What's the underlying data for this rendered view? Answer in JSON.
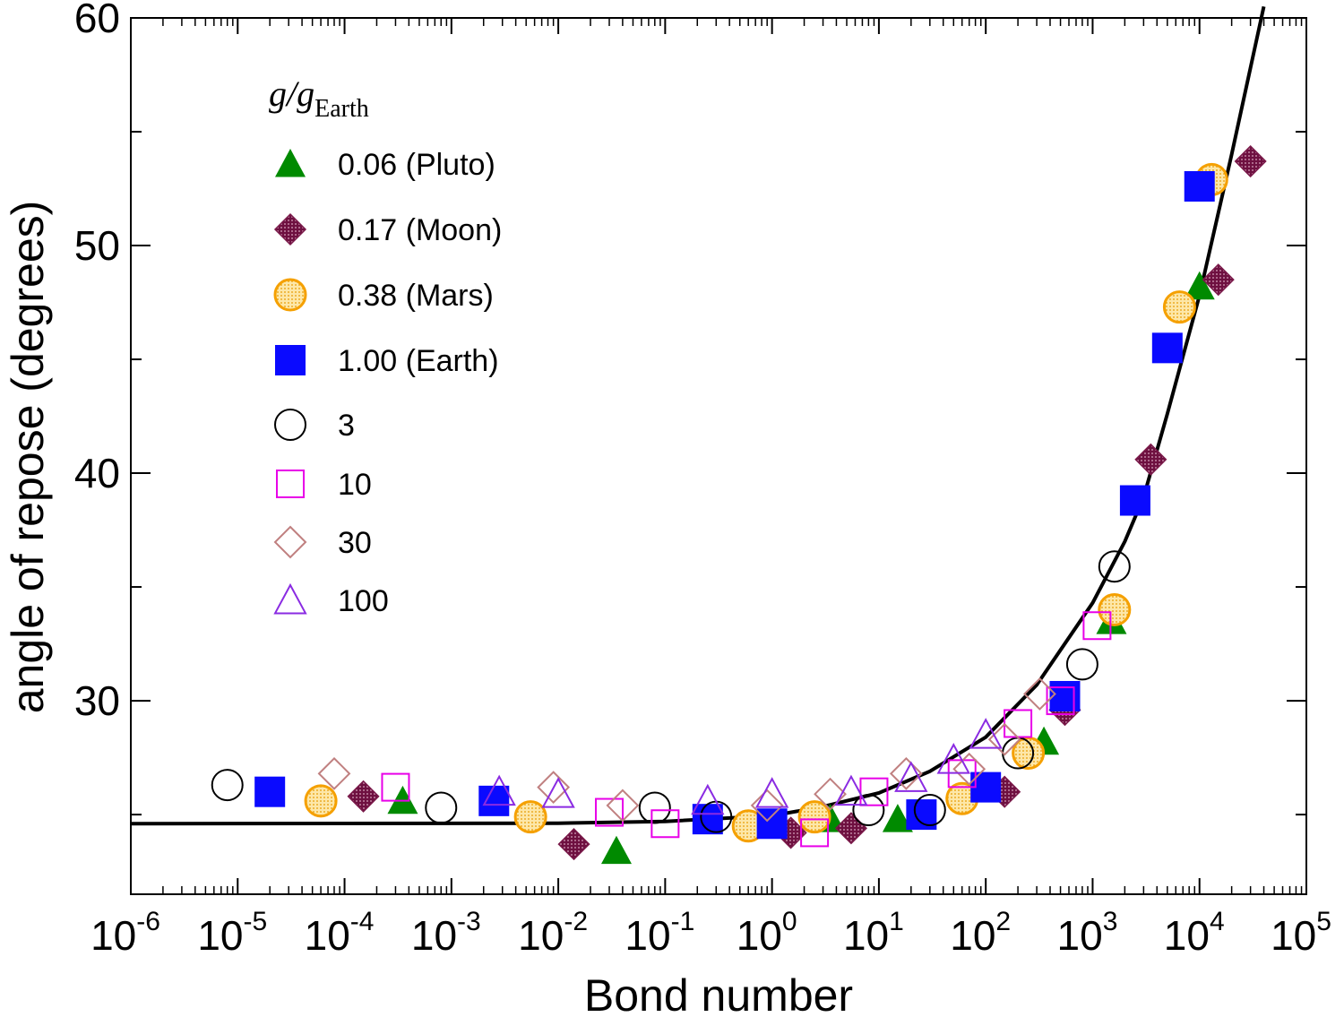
{
  "chart_data": {
    "type": "scatter",
    "xlabel": "Bond number",
    "ylabel": "angle of repose (degrees)",
    "x_scale": "log",
    "xlim": [
      1e-06,
      100000.0
    ],
    "ylim": [
      21.5,
      60
    ],
    "x_ticks": [
      {
        "base": "10",
        "exp": "-6"
      },
      {
        "base": "10",
        "exp": "-5"
      },
      {
        "base": "10",
        "exp": "-4"
      },
      {
        "base": "10",
        "exp": "-3"
      },
      {
        "base": "10",
        "exp": "-2"
      },
      {
        "base": "10",
        "exp": "-1"
      },
      {
        "base": "10",
        "exp": "0"
      },
      {
        "base": "10",
        "exp": "1"
      },
      {
        "base": "10",
        "exp": "2"
      },
      {
        "base": "10",
        "exp": "3"
      },
      {
        "base": "10",
        "exp": "4"
      },
      {
        "base": "10",
        "exp": "5"
      }
    ],
    "y_ticks": [
      "30",
      "40",
      "50",
      "60"
    ],
    "legend": {
      "title": "g/g",
      "title_sub": "Earth",
      "placement": "top-left"
    },
    "series": [
      {
        "name": "0.06 (Pluto)",
        "marker": "filled-triangle",
        "color": "#008a00",
        "points": [
          [
            0.00035,
            25.6
          ],
          [
            0.035,
            23.4
          ],
          [
            3.5,
            24.8
          ],
          [
            15,
            24.8
          ],
          [
            350,
            28.2
          ],
          [
            1500,
            33.5
          ],
          [
            10000,
            48.2
          ]
        ]
      },
      {
        "name": "0.17 (Moon)",
        "marker": "dotted-diamond",
        "color": "#7a1a4a",
        "points": [
          [
            0.00015,
            25.8
          ],
          [
            0.014,
            23.7
          ],
          [
            1.5,
            24.2
          ],
          [
            5.5,
            24.4
          ],
          [
            150,
            26.0
          ],
          [
            550,
            29.6
          ],
          [
            3500,
            40.6
          ],
          [
            15000,
            48.5
          ],
          [
            30000,
            53.7
          ]
        ]
      },
      {
        "name": "0.38 (Mars)",
        "marker": "dotted-circle",
        "color": "#f5a000",
        "points": [
          [
            6e-05,
            25.6
          ],
          [
            0.0055,
            24.9
          ],
          [
            0.6,
            24.5
          ],
          [
            2.5,
            24.9
          ],
          [
            60,
            25.7
          ],
          [
            250,
            27.7
          ],
          [
            1600,
            34.0
          ],
          [
            6500,
            47.3
          ],
          [
            13000,
            52.9
          ]
        ]
      },
      {
        "name": "1.00 (Earth)",
        "marker": "filled-square",
        "color": "#0a0aff",
        "points": [
          [
            2e-05,
            26.0
          ],
          [
            0.0025,
            25.6
          ],
          [
            0.25,
            24.8
          ],
          [
            1.0,
            24.6
          ],
          [
            25,
            25.0
          ],
          [
            100,
            26.2
          ],
          [
            550,
            30.2
          ],
          [
            2500,
            38.8
          ],
          [
            5000,
            45.5
          ],
          [
            10000,
            52.6
          ]
        ]
      },
      {
        "name": "3",
        "marker": "open-circle",
        "color": "#000000",
        "points": [
          [
            8e-06,
            26.3
          ],
          [
            0.0008,
            25.3
          ],
          [
            0.08,
            25.3
          ],
          [
            0.3,
            24.9
          ],
          [
            8,
            25.2
          ],
          [
            30,
            25.2
          ],
          [
            200,
            27.7
          ],
          [
            800,
            31.6
          ],
          [
            1600,
            35.9
          ]
        ]
      },
      {
        "name": "10",
        "marker": "open-square",
        "color": "#e800e8",
        "points": [
          [
            0.0003,
            26.2
          ],
          [
            0.03,
            25.1
          ],
          [
            0.1,
            24.6
          ],
          [
            2.5,
            24.2
          ],
          [
            9,
            26.0
          ],
          [
            60,
            26.8
          ],
          [
            200,
            29.0
          ],
          [
            500,
            30.0
          ],
          [
            1100,
            33.3
          ]
        ]
      },
      {
        "name": "30",
        "marker": "open-diamond",
        "color": "#c08080",
        "points": [
          [
            8e-05,
            26.8
          ],
          [
            0.009,
            26.2
          ],
          [
            0.04,
            25.4
          ],
          [
            0.9,
            25.4
          ],
          [
            3.5,
            25.9
          ],
          [
            18,
            26.8
          ],
          [
            70,
            27.0
          ],
          [
            150,
            28.3
          ],
          [
            320,
            30.3
          ]
        ]
      },
      {
        "name": "100",
        "marker": "open-triangle",
        "color": "#8a2be2",
        "points": [
          [
            0.0028,
            26.0
          ],
          [
            0.01,
            25.9
          ],
          [
            0.25,
            25.6
          ],
          [
            1.0,
            25.9
          ],
          [
            5.5,
            26.0
          ],
          [
            20,
            26.6
          ],
          [
            50,
            27.4
          ],
          [
            100,
            28.5
          ]
        ]
      }
    ],
    "fit_curve": {
      "points": [
        [
          1e-06,
          24.6
        ],
        [
          0.01,
          24.62
        ],
        [
          0.1,
          24.7
        ],
        [
          1,
          24.95
        ],
        [
          3,
          25.35
        ],
        [
          10,
          25.95
        ],
        [
          30,
          26.9
        ],
        [
          100,
          28.4
        ],
        [
          300,
          30.7
        ],
        [
          1000,
          34.3
        ],
        [
          2000,
          37.0
        ],
        [
          3000,
          38.95
        ],
        [
          5000,
          42.6
        ],
        [
          10000,
          47.8
        ],
        [
          20000,
          54.0
        ],
        [
          40000,
          60.5
        ]
      ]
    }
  }
}
